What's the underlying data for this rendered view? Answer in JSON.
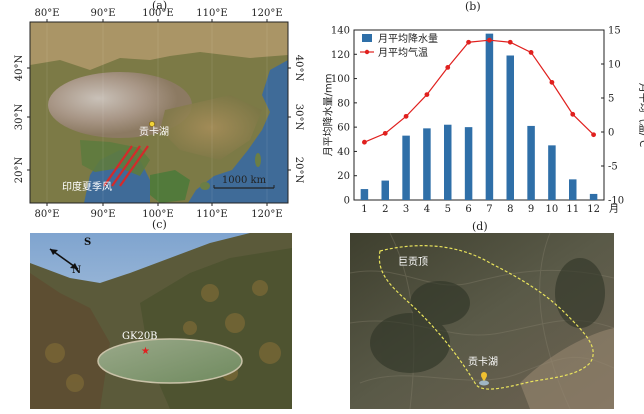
{
  "panels": {
    "a": {
      "letter": "(a)",
      "lon_ticks": [
        "80°E",
        "90°E",
        "100°E",
        "110°E",
        "120°E"
      ],
      "lat_ticks": [
        "40°N",
        "30°N",
        "20°N"
      ],
      "labels": {
        "site": "贡卡湖",
        "monsoon": "印度夏季风",
        "scale": "1000 km"
      }
    },
    "b": {
      "letter": "(b)"
    },
    "c": {
      "letter": "(c)",
      "compass_s": "S",
      "compass_n": "N",
      "sample": "GK20B"
    },
    "d": {
      "letter": "(d)",
      "peak": "巨贡顶",
      "lake": "贡卡湖"
    }
  },
  "chart_data": {
    "type": "bar",
    "categories": [
      "1",
      "2",
      "3",
      "4",
      "5",
      "6",
      "7",
      "8",
      "9",
      "10",
      "11",
      "12"
    ],
    "x_unit": "月",
    "series": [
      {
        "name": "月平均降水量",
        "kind": "bar",
        "axis": "left",
        "values": [
          9,
          16,
          53,
          59,
          62,
          60,
          137,
          119,
          61,
          45,
          17,
          5
        ],
        "color": "#2f6fa8"
      },
      {
        "name": "月平均气温",
        "kind": "line",
        "axis": "right",
        "values": [
          -1.5,
          -0.2,
          2.3,
          5.5,
          9.5,
          13.2,
          13.5,
          13.2,
          11.7,
          7.3,
          2.6,
          -0.4
        ],
        "color": "#e0201e"
      }
    ],
    "ylabel": "月平均降水量/mm",
    "y2label": "月平均气温/℃",
    "ylim": [
      0,
      140
    ],
    "y2lim": [
      -10,
      15
    ],
    "yticks": [
      "0",
      "20",
      "40",
      "60",
      "80",
      "100",
      "120",
      "140"
    ],
    "y2ticks": [
      "-10",
      "-5",
      "0",
      "5",
      "10",
      "15"
    ],
    "legend": "top-left"
  }
}
